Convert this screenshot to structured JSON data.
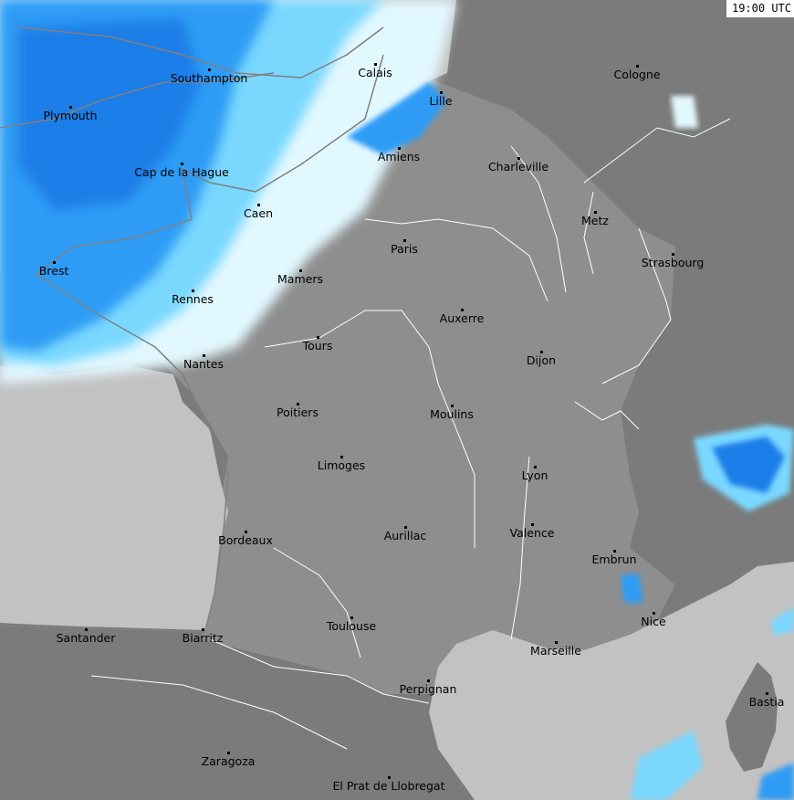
{
  "timestamp": "19:00 UTC",
  "colors": {
    "sea": "#c2c2c2",
    "france_land": "#8e8e8e",
    "neighbour_land": "#7b7b7b",
    "precip_heavy": "#1c7ee8",
    "precip_moderate": "#2d9cf5",
    "precip_light": "#7ad8ff",
    "precip_very_light": "#e2f8ff",
    "coastline": "#808080",
    "rivers_borders": "#ffffff"
  },
  "cities": [
    "Southampton",
    "Calais",
    "Lille",
    "Cologne",
    "Plymouth",
    "Amiens",
    "Charleville",
    "Cap de la Hague",
    "Caen",
    "Metz",
    "Paris",
    "Strasbourg",
    "Brest",
    "Mamers",
    "Rennes",
    "Auxerre",
    "Tours",
    "Dijon",
    "Nantes",
    "Poitiers",
    "Moulins",
    "Limoges",
    "Lyon",
    "Bordeaux",
    "Aurillac",
    "Valence",
    "Embrun",
    "Nice",
    "Toulouse",
    "Santander",
    "Biarritz",
    "Marseille",
    "Perpignan",
    "Bastia",
    "Zaragoza",
    "El Prat de Llobregat"
  ]
}
